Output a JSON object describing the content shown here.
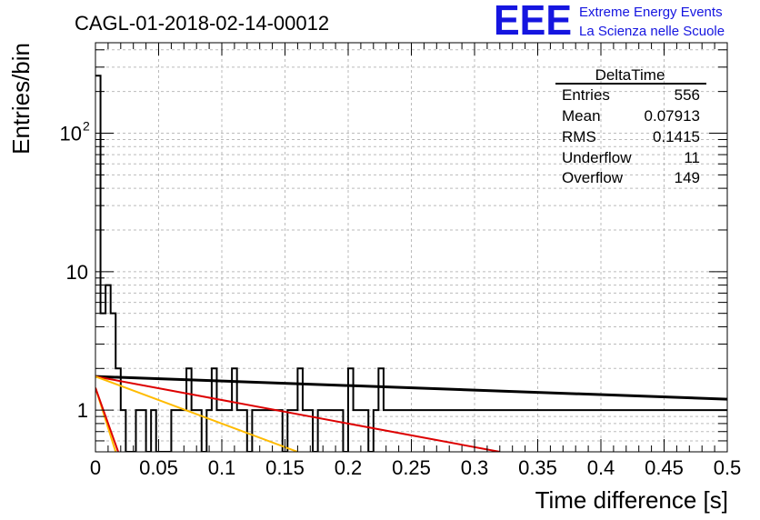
{
  "title": "CAGL-01-2018-02-14-00012",
  "logo": {
    "mark": "EEE",
    "line1": "Extreme Energy Events",
    "line2": "La Scienza nelle Scuole"
  },
  "stats_box": {
    "header": "DeltaTime",
    "rows": [
      {
        "label": "Entries",
        "value": "556"
      },
      {
        "label": "Mean",
        "value": "0.07913"
      },
      {
        "label": "RMS",
        "value": "0.1415"
      },
      {
        "label": "Underflow",
        "value": "11"
      },
      {
        "label": "Overflow",
        "value": "149"
      }
    ]
  },
  "chart_data": {
    "type": "histogram",
    "xlabel": "Time difference [s]",
    "ylabel": "Entries/bin",
    "xlim": [
      0,
      0.5
    ],
    "ylim": [
      0.5,
      450
    ],
    "ylog": true,
    "grid": true,
    "x_ticks": [
      "0",
      "0.05",
      "0.1",
      "0.15",
      "0.2",
      "0.25",
      "0.3",
      "0.35",
      "0.4",
      "0.45",
      "0.5"
    ],
    "y_ticks": [
      {
        "value": 1,
        "label": "1"
      },
      {
        "value": 10,
        "label": "10"
      },
      {
        "value": 100,
        "label": "10",
        "exp": "2"
      }
    ],
    "bin_width": 0.004,
    "counts": [
      260,
      5,
      8,
      5,
      2,
      1,
      0,
      0,
      1,
      1,
      0,
      1,
      0,
      0,
      0,
      1,
      1,
      1,
      2,
      1,
      1,
      0,
      1,
      2,
      1,
      1,
      1,
      2,
      1,
      1,
      0,
      1,
      1,
      1,
      1,
      1,
      1,
      0,
      1,
      1,
      2,
      1,
      1,
      0,
      1,
      1,
      1,
      1,
      1,
      0,
      2,
      1,
      1,
      1,
      0,
      1,
      2,
      1,
      1,
      1,
      1,
      1,
      1,
      1,
      1,
      1,
      1,
      1,
      1,
      1,
      1,
      1,
      1,
      1,
      1,
      1,
      1,
      1,
      1,
      1,
      1,
      1,
      1,
      1,
      1,
      1,
      1,
      1,
      1,
      1,
      1,
      1,
      1,
      1,
      1,
      1,
      1,
      1,
      1,
      1,
      1,
      1,
      1,
      1,
      1,
      1,
      1,
      1,
      1,
      1,
      1,
      1,
      1,
      1,
      1,
      1,
      1,
      1,
      1,
      1,
      1,
      1,
      1,
      1,
      1
    ],
    "series": [
      {
        "color": "#000000",
        "x0": 0,
        "x1": 0.5,
        "y0": 1.75,
        "y1": 1.2
      },
      {
        "color": "#dd0000",
        "x0": 0,
        "x1": 0.32,
        "y0": 1.75,
        "y1": 0.5
      },
      {
        "color": "#ffbb00",
        "x0": 0,
        "x1": 0.16,
        "y0": 1.75,
        "y1": 0.5
      },
      {
        "color": "#ffbb00",
        "x0": 0,
        "x1": 0.016,
        "y0": 1.45,
        "y1": 0.5
      },
      {
        "color": "#dd0000",
        "x0": 0,
        "x1": 0.018,
        "y0": 1.45,
        "y1": 0.5
      }
    ]
  }
}
